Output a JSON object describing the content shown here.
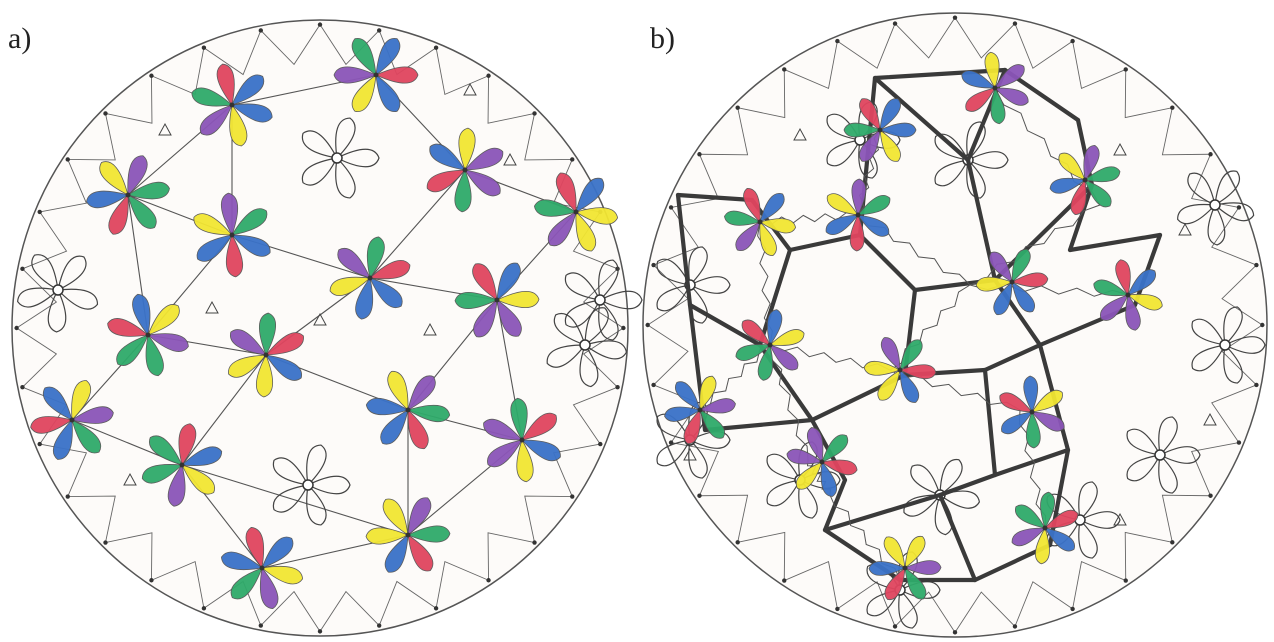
{
  "panels": [
    {
      "label": "a)"
    },
    {
      "label": "b)"
    }
  ],
  "colors": {
    "paper": "#fdfbf9",
    "ink": "#4a4a4a",
    "heavy_ink": "#3a3a3a",
    "red": "#e0455f",
    "blue": "#3a72c8",
    "yellow": "#f2e632",
    "green": "#2faa6a",
    "purple": "#8b55b8"
  },
  "glyphs": {
    "flower": "six-petal-flower",
    "empty_flower": "outline-five-petal-flower",
    "spring": "zigzag-spring-bond",
    "vertex": "dot-node"
  }
}
